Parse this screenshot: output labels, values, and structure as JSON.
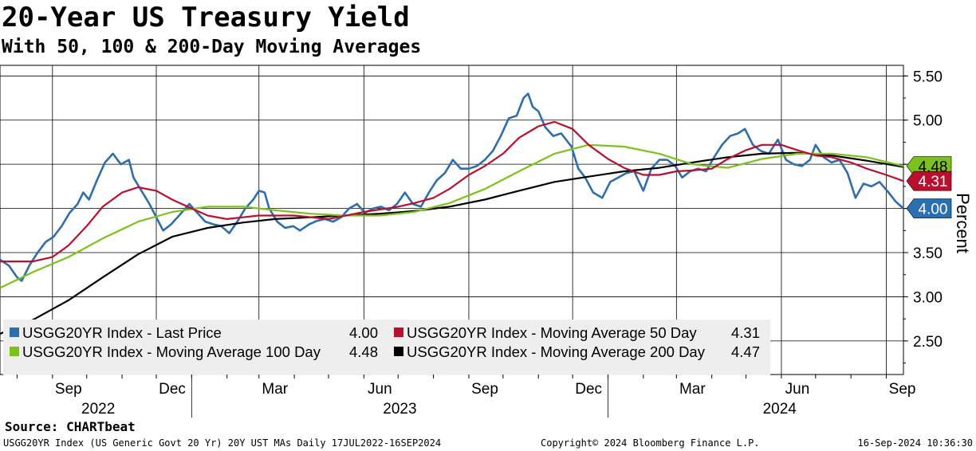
{
  "header": {
    "title": "20-Year US Treasury Yield",
    "subtitle": "With 50, 100 & 200-Day Moving Averages"
  },
  "chart_data": {
    "type": "line",
    "y_axis_label": "Percent",
    "y_axis_side": "right",
    "ylim": [
      2.12,
      5.62
    ],
    "y_ticks": [
      "5.50",
      "5.00",
      "4.50",
      "4.00",
      "3.50",
      "3.00",
      "2.50"
    ],
    "x_month_labels": [
      "Sep",
      "Dec",
      "Mar",
      "Jun",
      "Sep",
      "Dec",
      "Mar",
      "Jun",
      "Sep"
    ],
    "x_year_labels": [
      "2022",
      "2023",
      "2024"
    ],
    "date_range": [
      "2022-07-17",
      "2024-09-16"
    ],
    "grid": true,
    "last_value_tags": [
      {
        "label": "4.48",
        "color": "#7dc11d",
        "series": "MA100"
      },
      {
        "label": "4.31",
        "color": "#b8102e",
        "series": "MA50"
      },
      {
        "label": "4.00",
        "color": "#2b6fb0",
        "series": "Last Price"
      }
    ],
    "series": [
      {
        "name": "USGG20YR Index - Last Price",
        "legend_value": "4.00",
        "color": "#2f6eaa",
        "points": [
          [
            "2022-07-17",
            3.42
          ],
          [
            "2022-07-25",
            3.35
          ],
          [
            "2022-08-01",
            3.22
          ],
          [
            "2022-08-05",
            3.18
          ],
          [
            "2022-08-12",
            3.36
          ],
          [
            "2022-08-19",
            3.5
          ],
          [
            "2022-08-26",
            3.62
          ],
          [
            "2022-09-02",
            3.68
          ],
          [
            "2022-09-09",
            3.8
          ],
          [
            "2022-09-16",
            3.95
          ],
          [
            "2022-09-23",
            4.05
          ],
          [
            "2022-09-28",
            4.18
          ],
          [
            "2022-10-03",
            4.1
          ],
          [
            "2022-10-10",
            4.32
          ],
          [
            "2022-10-17",
            4.52
          ],
          [
            "2022-10-24",
            4.62
          ],
          [
            "2022-10-31",
            4.5
          ],
          [
            "2022-11-07",
            4.55
          ],
          [
            "2022-11-11",
            4.35
          ],
          [
            "2022-11-18",
            4.2
          ],
          [
            "2022-11-25",
            4.05
          ],
          [
            "2022-12-01",
            3.9
          ],
          [
            "2022-12-07",
            3.75
          ],
          [
            "2022-12-14",
            3.82
          ],
          [
            "2022-12-21",
            3.92
          ],
          [
            "2022-12-30",
            4.05
          ],
          [
            "2023-01-06",
            3.95
          ],
          [
            "2023-01-13",
            3.85
          ],
          [
            "2023-01-20",
            3.82
          ],
          [
            "2023-01-27",
            3.8
          ],
          [
            "2023-02-03",
            3.72
          ],
          [
            "2023-02-10",
            3.85
          ],
          [
            "2023-02-17",
            4.0
          ],
          [
            "2023-02-24",
            4.1
          ],
          [
            "2023-03-01",
            4.2
          ],
          [
            "2023-03-06",
            4.18
          ],
          [
            "2023-03-10",
            4.0
          ],
          [
            "2023-03-17",
            3.85
          ],
          [
            "2023-03-24",
            3.78
          ],
          [
            "2023-03-31",
            3.8
          ],
          [
            "2023-04-06",
            3.75
          ],
          [
            "2023-04-14",
            3.82
          ],
          [
            "2023-04-21",
            3.86
          ],
          [
            "2023-04-28",
            3.88
          ],
          [
            "2023-05-05",
            3.85
          ],
          [
            "2023-05-12",
            3.9
          ],
          [
            "2023-05-19",
            4.0
          ],
          [
            "2023-05-26",
            4.05
          ],
          [
            "2023-06-02",
            3.95
          ],
          [
            "2023-06-09",
            4.0
          ],
          [
            "2023-06-16",
            4.02
          ],
          [
            "2023-06-23",
            3.98
          ],
          [
            "2023-06-30",
            4.05
          ],
          [
            "2023-07-07",
            4.18
          ],
          [
            "2023-07-14",
            4.05
          ],
          [
            "2023-07-21",
            4.02
          ],
          [
            "2023-07-28",
            4.18
          ],
          [
            "2023-08-04",
            4.32
          ],
          [
            "2023-08-11",
            4.4
          ],
          [
            "2023-08-18",
            4.55
          ],
          [
            "2023-08-25",
            4.45
          ],
          [
            "2023-09-01",
            4.45
          ],
          [
            "2023-09-08",
            4.48
          ],
          [
            "2023-09-15",
            4.55
          ],
          [
            "2023-09-22",
            4.65
          ],
          [
            "2023-09-29",
            4.82
          ],
          [
            "2023-10-06",
            5.02
          ],
          [
            "2023-10-13",
            5.05
          ],
          [
            "2023-10-19",
            5.25
          ],
          [
            "2023-10-23",
            5.3
          ],
          [
            "2023-10-27",
            5.15
          ],
          [
            "2023-11-01",
            5.1
          ],
          [
            "2023-11-07",
            4.92
          ],
          [
            "2023-11-14",
            4.82
          ],
          [
            "2023-11-21",
            4.85
          ],
          [
            "2023-11-30",
            4.7
          ],
          [
            "2023-12-06",
            4.45
          ],
          [
            "2023-12-12",
            4.35
          ],
          [
            "2023-12-19",
            4.18
          ],
          [
            "2023-12-27",
            4.12
          ],
          [
            "2024-01-03",
            4.3
          ],
          [
            "2024-01-10",
            4.35
          ],
          [
            "2024-01-17",
            4.4
          ],
          [
            "2024-01-24",
            4.42
          ],
          [
            "2024-02-01",
            4.2
          ],
          [
            "2024-02-08",
            4.45
          ],
          [
            "2024-02-15",
            4.55
          ],
          [
            "2024-02-22",
            4.55
          ],
          [
            "2024-02-29",
            4.48
          ],
          [
            "2024-03-06",
            4.35
          ],
          [
            "2024-03-13",
            4.42
          ],
          [
            "2024-03-20",
            4.45
          ],
          [
            "2024-03-27",
            4.42
          ],
          [
            "2024-04-03",
            4.58
          ],
          [
            "2024-04-10",
            4.72
          ],
          [
            "2024-04-17",
            4.82
          ],
          [
            "2024-04-24",
            4.85
          ],
          [
            "2024-04-30",
            4.9
          ],
          [
            "2024-05-07",
            4.72
          ],
          [
            "2024-05-14",
            4.65
          ],
          [
            "2024-05-21",
            4.62
          ],
          [
            "2024-05-29",
            4.78
          ],
          [
            "2024-06-05",
            4.55
          ],
          [
            "2024-06-12",
            4.5
          ],
          [
            "2024-06-19",
            4.48
          ],
          [
            "2024-06-26",
            4.55
          ],
          [
            "2024-07-01",
            4.72
          ],
          [
            "2024-07-08",
            4.58
          ],
          [
            "2024-07-15",
            4.52
          ],
          [
            "2024-07-22",
            4.55
          ],
          [
            "2024-07-29",
            4.4
          ],
          [
            "2024-08-05",
            4.12
          ],
          [
            "2024-08-12",
            4.28
          ],
          [
            "2024-08-19",
            4.25
          ],
          [
            "2024-08-26",
            4.3
          ],
          [
            "2024-09-03",
            4.18
          ],
          [
            "2024-09-09",
            4.08
          ],
          [
            "2024-09-16",
            4.0
          ]
        ]
      },
      {
        "name": "USGG20YR Index - Moving Average 50 Day",
        "legend_value": "4.31",
        "color": "#b8102e",
        "points": [
          [
            "2022-07-17",
            3.4
          ],
          [
            "2022-08-15",
            3.4
          ],
          [
            "2022-09-01",
            3.45
          ],
          [
            "2022-09-15",
            3.58
          ],
          [
            "2022-10-01",
            3.8
          ],
          [
            "2022-10-15",
            4.02
          ],
          [
            "2022-11-01",
            4.18
          ],
          [
            "2022-11-15",
            4.24
          ],
          [
            "2022-12-01",
            4.2
          ],
          [
            "2022-12-15",
            4.1
          ],
          [
            "2023-01-01",
            4.0
          ],
          [
            "2023-01-15",
            3.92
          ],
          [
            "2023-02-01",
            3.88
          ],
          [
            "2023-02-15",
            3.9
          ],
          [
            "2023-03-01",
            3.92
          ],
          [
            "2023-04-01",
            3.92
          ],
          [
            "2023-05-01",
            3.88
          ],
          [
            "2023-06-01",
            3.96
          ],
          [
            "2023-07-01",
            4.02
          ],
          [
            "2023-07-15",
            4.06
          ],
          [
            "2023-08-01",
            4.12
          ],
          [
            "2023-08-15",
            4.22
          ],
          [
            "2023-09-01",
            4.38
          ],
          [
            "2023-09-15",
            4.48
          ],
          [
            "2023-10-01",
            4.62
          ],
          [
            "2023-10-15",
            4.8
          ],
          [
            "2023-11-01",
            4.93
          ],
          [
            "2023-11-15",
            4.98
          ],
          [
            "2023-12-01",
            4.9
          ],
          [
            "2023-12-15",
            4.72
          ],
          [
            "2024-01-01",
            4.56
          ],
          [
            "2024-01-15",
            4.46
          ],
          [
            "2024-02-01",
            4.38
          ],
          [
            "2024-02-15",
            4.38
          ],
          [
            "2024-03-01",
            4.42
          ],
          [
            "2024-03-15",
            4.43
          ],
          [
            "2024-04-01",
            4.45
          ],
          [
            "2024-04-15",
            4.56
          ],
          [
            "2024-05-01",
            4.66
          ],
          [
            "2024-05-15",
            4.72
          ],
          [
            "2024-06-01",
            4.72
          ],
          [
            "2024-06-15",
            4.66
          ],
          [
            "2024-07-01",
            4.6
          ],
          [
            "2024-07-15",
            4.58
          ],
          [
            "2024-08-01",
            4.52
          ],
          [
            "2024-08-15",
            4.45
          ],
          [
            "2024-09-01",
            4.38
          ],
          [
            "2024-09-16",
            4.31
          ]
        ]
      },
      {
        "name": "USGG20YR Index - Moving Average 100 Day",
        "legend_value": "4.48",
        "color": "#7dc11d",
        "points": [
          [
            "2022-07-17",
            3.1
          ],
          [
            "2022-08-15",
            3.28
          ],
          [
            "2022-09-15",
            3.45
          ],
          [
            "2022-10-15",
            3.66
          ],
          [
            "2022-11-15",
            3.85
          ],
          [
            "2022-12-15",
            3.96
          ],
          [
            "2023-01-15",
            4.02
          ],
          [
            "2023-02-15",
            4.02
          ],
          [
            "2023-03-15",
            3.98
          ],
          [
            "2023-04-15",
            3.94
          ],
          [
            "2023-05-15",
            3.92
          ],
          [
            "2023-06-15",
            3.92
          ],
          [
            "2023-07-15",
            3.96
          ],
          [
            "2023-08-15",
            4.06
          ],
          [
            "2023-09-15",
            4.22
          ],
          [
            "2023-10-15",
            4.42
          ],
          [
            "2023-11-15",
            4.62
          ],
          [
            "2023-12-15",
            4.72
          ],
          [
            "2024-01-15",
            4.7
          ],
          [
            "2024-02-15",
            4.62
          ],
          [
            "2024-03-15",
            4.5
          ],
          [
            "2024-04-15",
            4.46
          ],
          [
            "2024-05-15",
            4.56
          ],
          [
            "2024-06-15",
            4.62
          ],
          [
            "2024-07-15",
            4.62
          ],
          [
            "2024-08-15",
            4.58
          ],
          [
            "2024-09-16",
            4.48
          ]
        ]
      },
      {
        "name": "USGG20YR Index - Moving Average 200 Day",
        "legend_value": "4.47",
        "color": "#000000",
        "points": [
          [
            "2022-07-17",
            2.58
          ],
          [
            "2022-08-15",
            2.74
          ],
          [
            "2022-09-15",
            2.96
          ],
          [
            "2022-10-15",
            3.22
          ],
          [
            "2022-11-15",
            3.48
          ],
          [
            "2022-12-15",
            3.68
          ],
          [
            "2023-01-15",
            3.78
          ],
          [
            "2023-02-15",
            3.84
          ],
          [
            "2023-03-15",
            3.88
          ],
          [
            "2023-04-15",
            3.9
          ],
          [
            "2023-05-15",
            3.92
          ],
          [
            "2023-06-15",
            3.94
          ],
          [
            "2023-07-15",
            3.97
          ],
          [
            "2023-08-15",
            4.02
          ],
          [
            "2023-09-15",
            4.1
          ],
          [
            "2023-10-15",
            4.2
          ],
          [
            "2023-11-15",
            4.3
          ],
          [
            "2023-12-15",
            4.36
          ],
          [
            "2024-01-15",
            4.42
          ],
          [
            "2024-02-15",
            4.46
          ],
          [
            "2024-03-15",
            4.52
          ],
          [
            "2024-04-15",
            4.58
          ],
          [
            "2024-05-15",
            4.62
          ],
          [
            "2024-06-15",
            4.63
          ],
          [
            "2024-07-15",
            4.6
          ],
          [
            "2024-08-15",
            4.54
          ],
          [
            "2024-09-16",
            4.47
          ]
        ]
      }
    ]
  },
  "footer": {
    "source": "Source: CHARTbeat",
    "description": "USGG20YR Index (US Generic Govt 20 Yr) 20Y UST MAs  Daily 17JUL2022-16SEP2024",
    "copyright": "Copyright© 2024 Bloomberg Finance L.P.",
    "timestamp": "16-Sep-2024 10:36:30"
  }
}
